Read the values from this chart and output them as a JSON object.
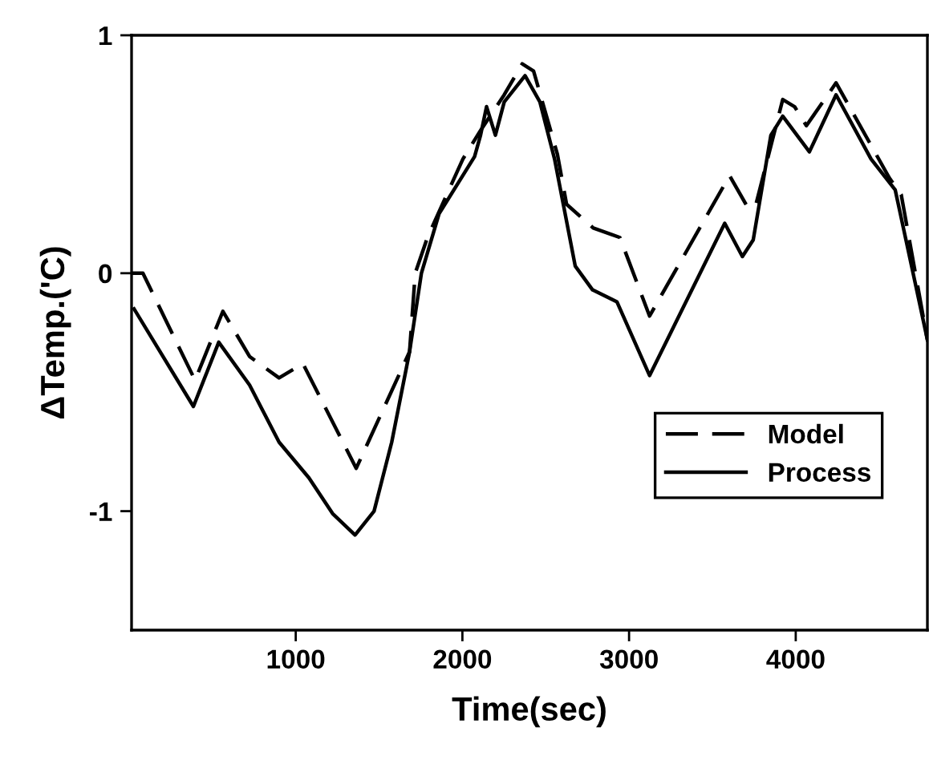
{
  "chart_data": {
    "type": "line",
    "xlabel": "Time(sec)",
    "ylabel": "ΔTemp.('C)",
    "xlim": [
      15,
      4790
    ],
    "ylim": [
      -1.5,
      1
    ],
    "xticks": [
      1000,
      2000,
      3000,
      4000
    ],
    "yticks": [
      -1,
      0,
      1
    ],
    "grid": false,
    "legend": "bottom right",
    "marker": "none",
    "series": [
      {
        "name": "Model",
        "color": "#000000",
        "line_style": "dashed",
        "x": [
          16,
          83,
          396,
          563,
          723,
          900,
          1043,
          1363,
          1683,
          1717,
          1790,
          2003,
          2109,
          2251,
          2359,
          2427,
          2570,
          2625,
          2785,
          2945,
          3123,
          3603,
          3709,
          3758,
          3922,
          3993,
          4064,
          4242,
          4562,
          4633,
          4790
        ],
        "values": [
          0,
          0,
          -0.45,
          -0.16,
          -0.35,
          -0.44,
          -0.38,
          -0.82,
          -0.33,
          0,
          0.15,
          0.48,
          0.6,
          0.75,
          0.88,
          0.85,
          0.5,
          0.29,
          0.19,
          0.15,
          -0.18,
          0.41,
          0.28,
          0.28,
          0.73,
          0.7,
          0.62,
          0.8,
          0.4,
          0.33,
          -0.28
        ]
      },
      {
        "name": "Process",
        "color": "#000000",
        "line_style": "solid",
        "x": [
          30,
          386,
          538,
          723,
          900,
          1079,
          1221,
          1356,
          1470,
          1576,
          1683,
          1754,
          1860,
          2073,
          2109,
          2145,
          2198,
          2251,
          2376,
          2465,
          2553,
          2677,
          2781,
          2927,
          3123,
          3574,
          3680,
          3745,
          3851,
          3922,
          4082,
          4242,
          4452,
          4597,
          4790
        ],
        "values": [
          -0.15,
          -0.56,
          -0.29,
          -0.47,
          -0.71,
          -0.86,
          -1.01,
          -1.1,
          -1,
          -0.71,
          -0.33,
          0,
          0.25,
          0.49,
          0.58,
          0.7,
          0.58,
          0.72,
          0.83,
          0.72,
          0.48,
          0.03,
          -0.07,
          -0.12,
          -0.43,
          0.21,
          0.07,
          0.14,
          0.58,
          0.66,
          0.51,
          0.75,
          0.48,
          0.35,
          -0.28
        ]
      }
    ]
  }
}
